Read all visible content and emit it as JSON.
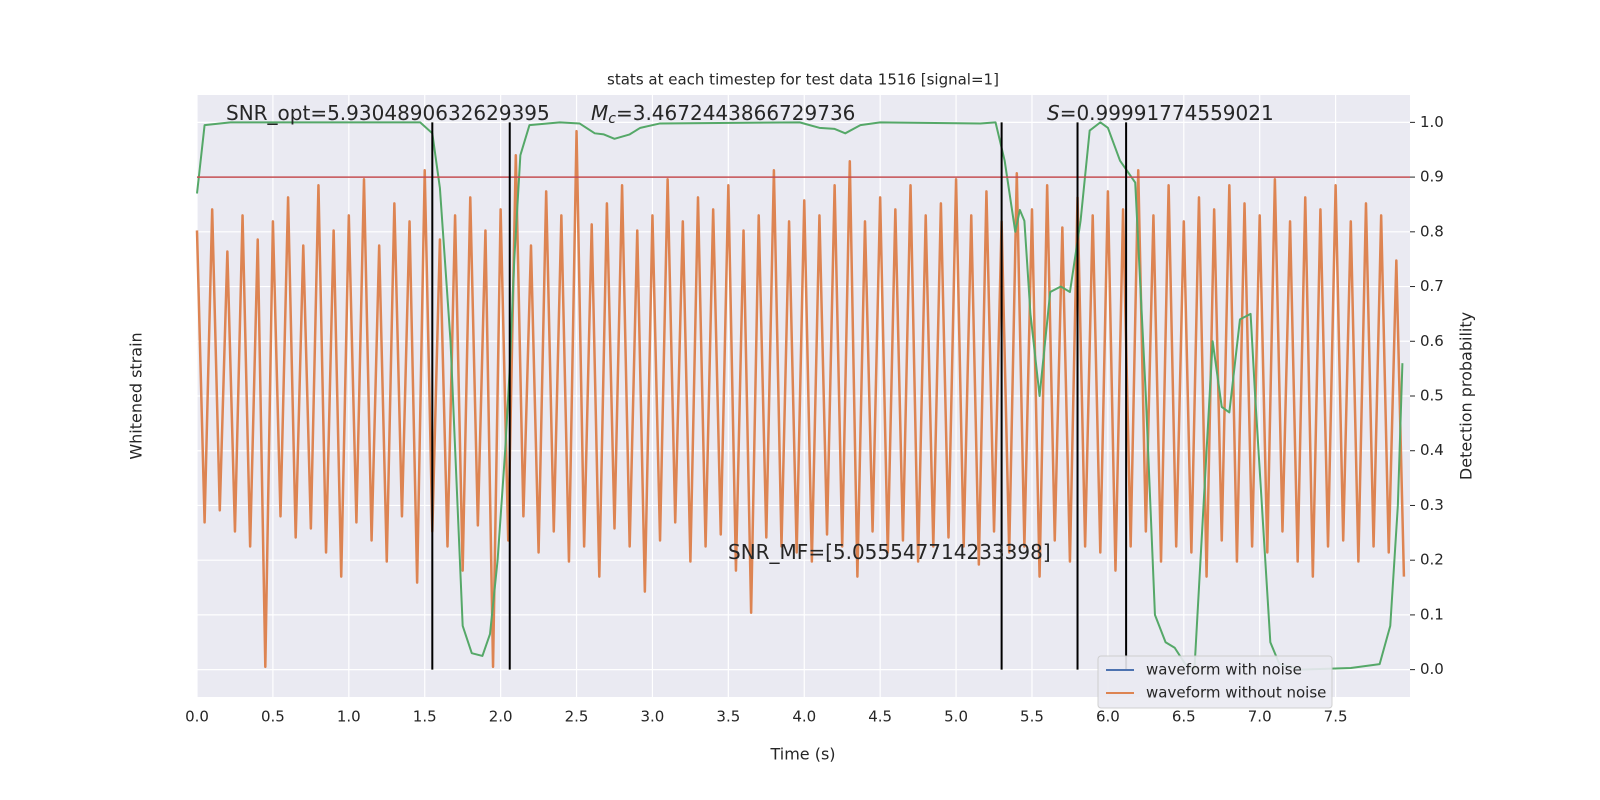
{
  "chart_data": {
    "type": "line",
    "title": "stats at each timestep for test data 1516 [signal=1]",
    "xlabel": "Time (s)",
    "ylabel": "Whitened strain",
    "y2label": "Detection probability",
    "xlim": [
      0,
      7.99
    ],
    "xticks": [
      {
        "value": 0,
        "label": "0.0"
      },
      0.5,
      {
        "value": 1,
        "label": "1.0"
      },
      1.5,
      {
        "value": 2,
        "label": "2.0"
      },
      2.5,
      {
        "value": 3,
        "label": "3.0"
      },
      3.5,
      {
        "value": 4,
        "label": "4.0"
      },
      4.5,
      {
        "value": 5,
        "label": "5.0"
      },
      5.5,
      {
        "value": 6,
        "label": "6.0"
      },
      6.5,
      {
        "value": 7,
        "label": "7.0"
      },
      7.5
    ],
    "ylim": [
      -1,
      1
    ],
    "y2lim": [
      -0.05,
      1.05
    ],
    "y2ticks": [
      {
        "value": 0,
        "label": "0.0"
      },
      0.1,
      0.2,
      0.3,
      0.4,
      0.5,
      0.6,
      0.7,
      0.8,
      0.9,
      {
        "value": 1,
        "label": "1.0"
      }
    ],
    "grid": true,
    "legend": "lower right",
    "annotations": [
      {
        "text": "SNR_opt=5.9304890632629395"
      },
      {
        "symbol": "M",
        "subscript": "c",
        "text": "=3.4672443866729736"
      },
      {
        "symbol": "S",
        "text": "=0.99991774559021"
      },
      {
        "text": "SNR_MF=[5.055547714233398]"
      }
    ],
    "hline": {
      "value": 0.9,
      "color": "#c44e52"
    },
    "vlines": {
      "color": "#000000",
      "x": [
        1.55,
        2.06,
        5.3,
        5.8,
        6.12
      ]
    },
    "series": [
      {
        "name": "waveform with noise",
        "color": "#4c72b0",
        "x": [],
        "values": []
      },
      {
        "name": "waveform without noise",
        "color": "#dd8452",
        "x": [
          0,
          0.05,
          0.1,
          0.15,
          0.2,
          0.25,
          0.3,
          0.35,
          0.4,
          0.45,
          0.5,
          0.55,
          0.6,
          0.65,
          0.7,
          0.75,
          0.8,
          0.85,
          0.9,
          0.95,
          1,
          1.05,
          1.1,
          1.15,
          1.2,
          1.25,
          1.3,
          1.35,
          1.4,
          1.45,
          1.5,
          1.55,
          1.6,
          1.65,
          1.7,
          1.75,
          1.8,
          1.85,
          1.9,
          1.95,
          2,
          2.05,
          2.1,
          2.15,
          2.2,
          2.25,
          2.3,
          2.35,
          2.4,
          2.45,
          2.5,
          2.55,
          2.6,
          2.65,
          2.7,
          2.75,
          2.8,
          2.85,
          2.9,
          2.95,
          3,
          3.05,
          3.1,
          3.15,
          3.2,
          3.25,
          3.3,
          3.35,
          3.4,
          3.45,
          3.5,
          3.55,
          3.6,
          3.65,
          3.7,
          3.75,
          3.8,
          3.85,
          3.9,
          3.95,
          4,
          4.05,
          4.1,
          4.15,
          4.2,
          4.25,
          4.3,
          4.35,
          4.4,
          4.45,
          4.5,
          4.55,
          4.6,
          4.65,
          4.7,
          4.75,
          4.8,
          4.85,
          4.9,
          4.95,
          5,
          5.05,
          5.1,
          5.15,
          5.2,
          5.25,
          5.3,
          5.35,
          5.4,
          5.45,
          5.5,
          5.55,
          5.6,
          5.65,
          5.7,
          5.75,
          5.8,
          5.85,
          5.9,
          5.95,
          6,
          6.05,
          6.1,
          6.15,
          6.2,
          6.25,
          6.3,
          6.35,
          6.4,
          6.45,
          6.5,
          6.55,
          6.6,
          6.65,
          6.7,
          6.75,
          6.8,
          6.85,
          6.9,
          6.95,
          7,
          7.05,
          7.1,
          7.15,
          7.2,
          7.25,
          7.3,
          7.35,
          7.4,
          7.45,
          7.5,
          7.55,
          7.6,
          7.65,
          7.7,
          7.75,
          7.8,
          7.85,
          7.9,
          7.95
        ],
        "values": [
          0.55,
          -0.42,
          0.62,
          -0.38,
          0.48,
          -0.45,
          0.6,
          -0.5,
          0.52,
          -0.9,
          0.58,
          -0.4,
          0.66,
          -0.47,
          0.5,
          -0.44,
          0.7,
          -0.52,
          0.55,
          -0.6,
          0.6,
          -0.42,
          0.72,
          -0.48,
          0.5,
          -0.55,
          0.64,
          -0.4,
          0.58,
          -0.62,
          0.75,
          -0.45,
          0.52,
          -0.5,
          0.6,
          -0.58,
          0.66,
          -0.43,
          0.55,
          -0.9,
          0.62,
          -0.48,
          0.8,
          -0.4,
          0.5,
          -0.52,
          0.68,
          -0.45,
          0.6,
          -0.55,
          0.88,
          -0.5,
          0.57,
          -0.6,
          0.64,
          -0.44,
          0.7,
          -0.5,
          0.55,
          -0.65,
          0.6,
          -0.48,
          0.72,
          -0.42,
          0.58,
          -0.55,
          0.66,
          -0.5,
          0.62,
          -0.46,
          0.7,
          -0.58,
          0.55,
          -0.72,
          0.6,
          -0.47,
          0.75,
          -0.5,
          0.58,
          -0.52,
          0.65,
          -0.55,
          0.6,
          -0.46,
          0.7,
          -0.5,
          0.78,
          -0.6,
          0.58,
          -0.45,
          0.66,
          -0.52,
          0.62,
          -0.48,
          0.7,
          -0.55,
          0.6,
          -0.5,
          0.64,
          -0.47,
          0.72,
          -0.5,
          0.6,
          -0.56,
          0.68,
          -0.45,
          0.58,
          -0.52,
          0.74,
          -0.5,
          0.62,
          -0.6,
          0.7,
          -0.48,
          0.56,
          -0.55,
          0.66,
          -0.5,
          0.6,
          -0.52,
          0.68,
          -0.58,
          0.62,
          -0.5,
          0.75,
          -0.45,
          0.6,
          -0.55,
          0.7,
          -0.5,
          0.58,
          -0.52,
          0.66,
          -0.6,
          0.62,
          -0.48,
          0.7,
          -0.55,
          0.64,
          -0.5,
          0.6,
          -0.52,
          0.72,
          -0.45,
          0.58,
          -0.55,
          0.66,
          -0.6,
          0.62,
          -0.5,
          0.7,
          -0.48,
          0.58,
          -0.55,
          0.64,
          -0.5,
          0.6,
          -0.52,
          0.45,
          -0.6
        ]
      },
      {
        "color": "#55a868",
        "axis": "y2",
        "x": [
          0,
          0.05,
          0.22,
          1.47,
          1.55,
          1.6,
          1.67,
          1.75,
          1.81,
          1.88,
          1.93,
          1.98,
          2.03,
          2.06,
          2.09,
          2.13,
          2.19,
          2.39,
          2.52,
          2.62,
          2.68,
          2.75,
          2.85,
          2.92,
          3.05,
          3.97,
          4.1,
          4.2,
          4.27,
          4.37,
          4.5,
          5.16,
          5.26,
          5.32,
          5.39,
          5.42,
          5.45,
          5.49,
          5.55,
          5.62,
          5.69,
          5.75,
          5.82,
          5.88,
          5.95,
          6,
          6.08,
          6.18,
          6.25,
          6.31,
          6.38,
          6.44,
          6.51,
          6.57,
          6.63,
          6.69,
          6.75,
          6.8,
          6.87,
          6.94,
          6.97,
          7.07,
          7.13,
          7.27,
          7.6,
          7.79,
          7.86,
          7.91,
          7.94
        ],
        "values": [
          0.87,
          0.995,
          1,
          1,
          0.98,
          0.88,
          0.6,
          0.08,
          0.03,
          0.025,
          0.065,
          0.2,
          0.4,
          0.55,
          0.75,
          0.94,
          0.995,
          1,
          0.998,
          0.98,
          0.978,
          0.97,
          0.978,
          0.99,
          0.998,
          1,
          0.99,
          0.988,
          0.98,
          0.995,
          1,
          0.998,
          1,
          0.93,
          0.8,
          0.84,
          0.82,
          0.65,
          0.5,
          0.69,
          0.7,
          0.69,
          0.82,
          0.985,
          1,
          0.99,
          0.93,
          0.89,
          0.5,
          0.1,
          0.05,
          0.04,
          0.01,
          0,
          0.3,
          0.6,
          0.48,
          0.47,
          0.64,
          0.65,
          0.5,
          0.05,
          0.01,
          0,
          0.003,
          0.01,
          0.08,
          0.3,
          0.56
        ]
      }
    ]
  }
}
